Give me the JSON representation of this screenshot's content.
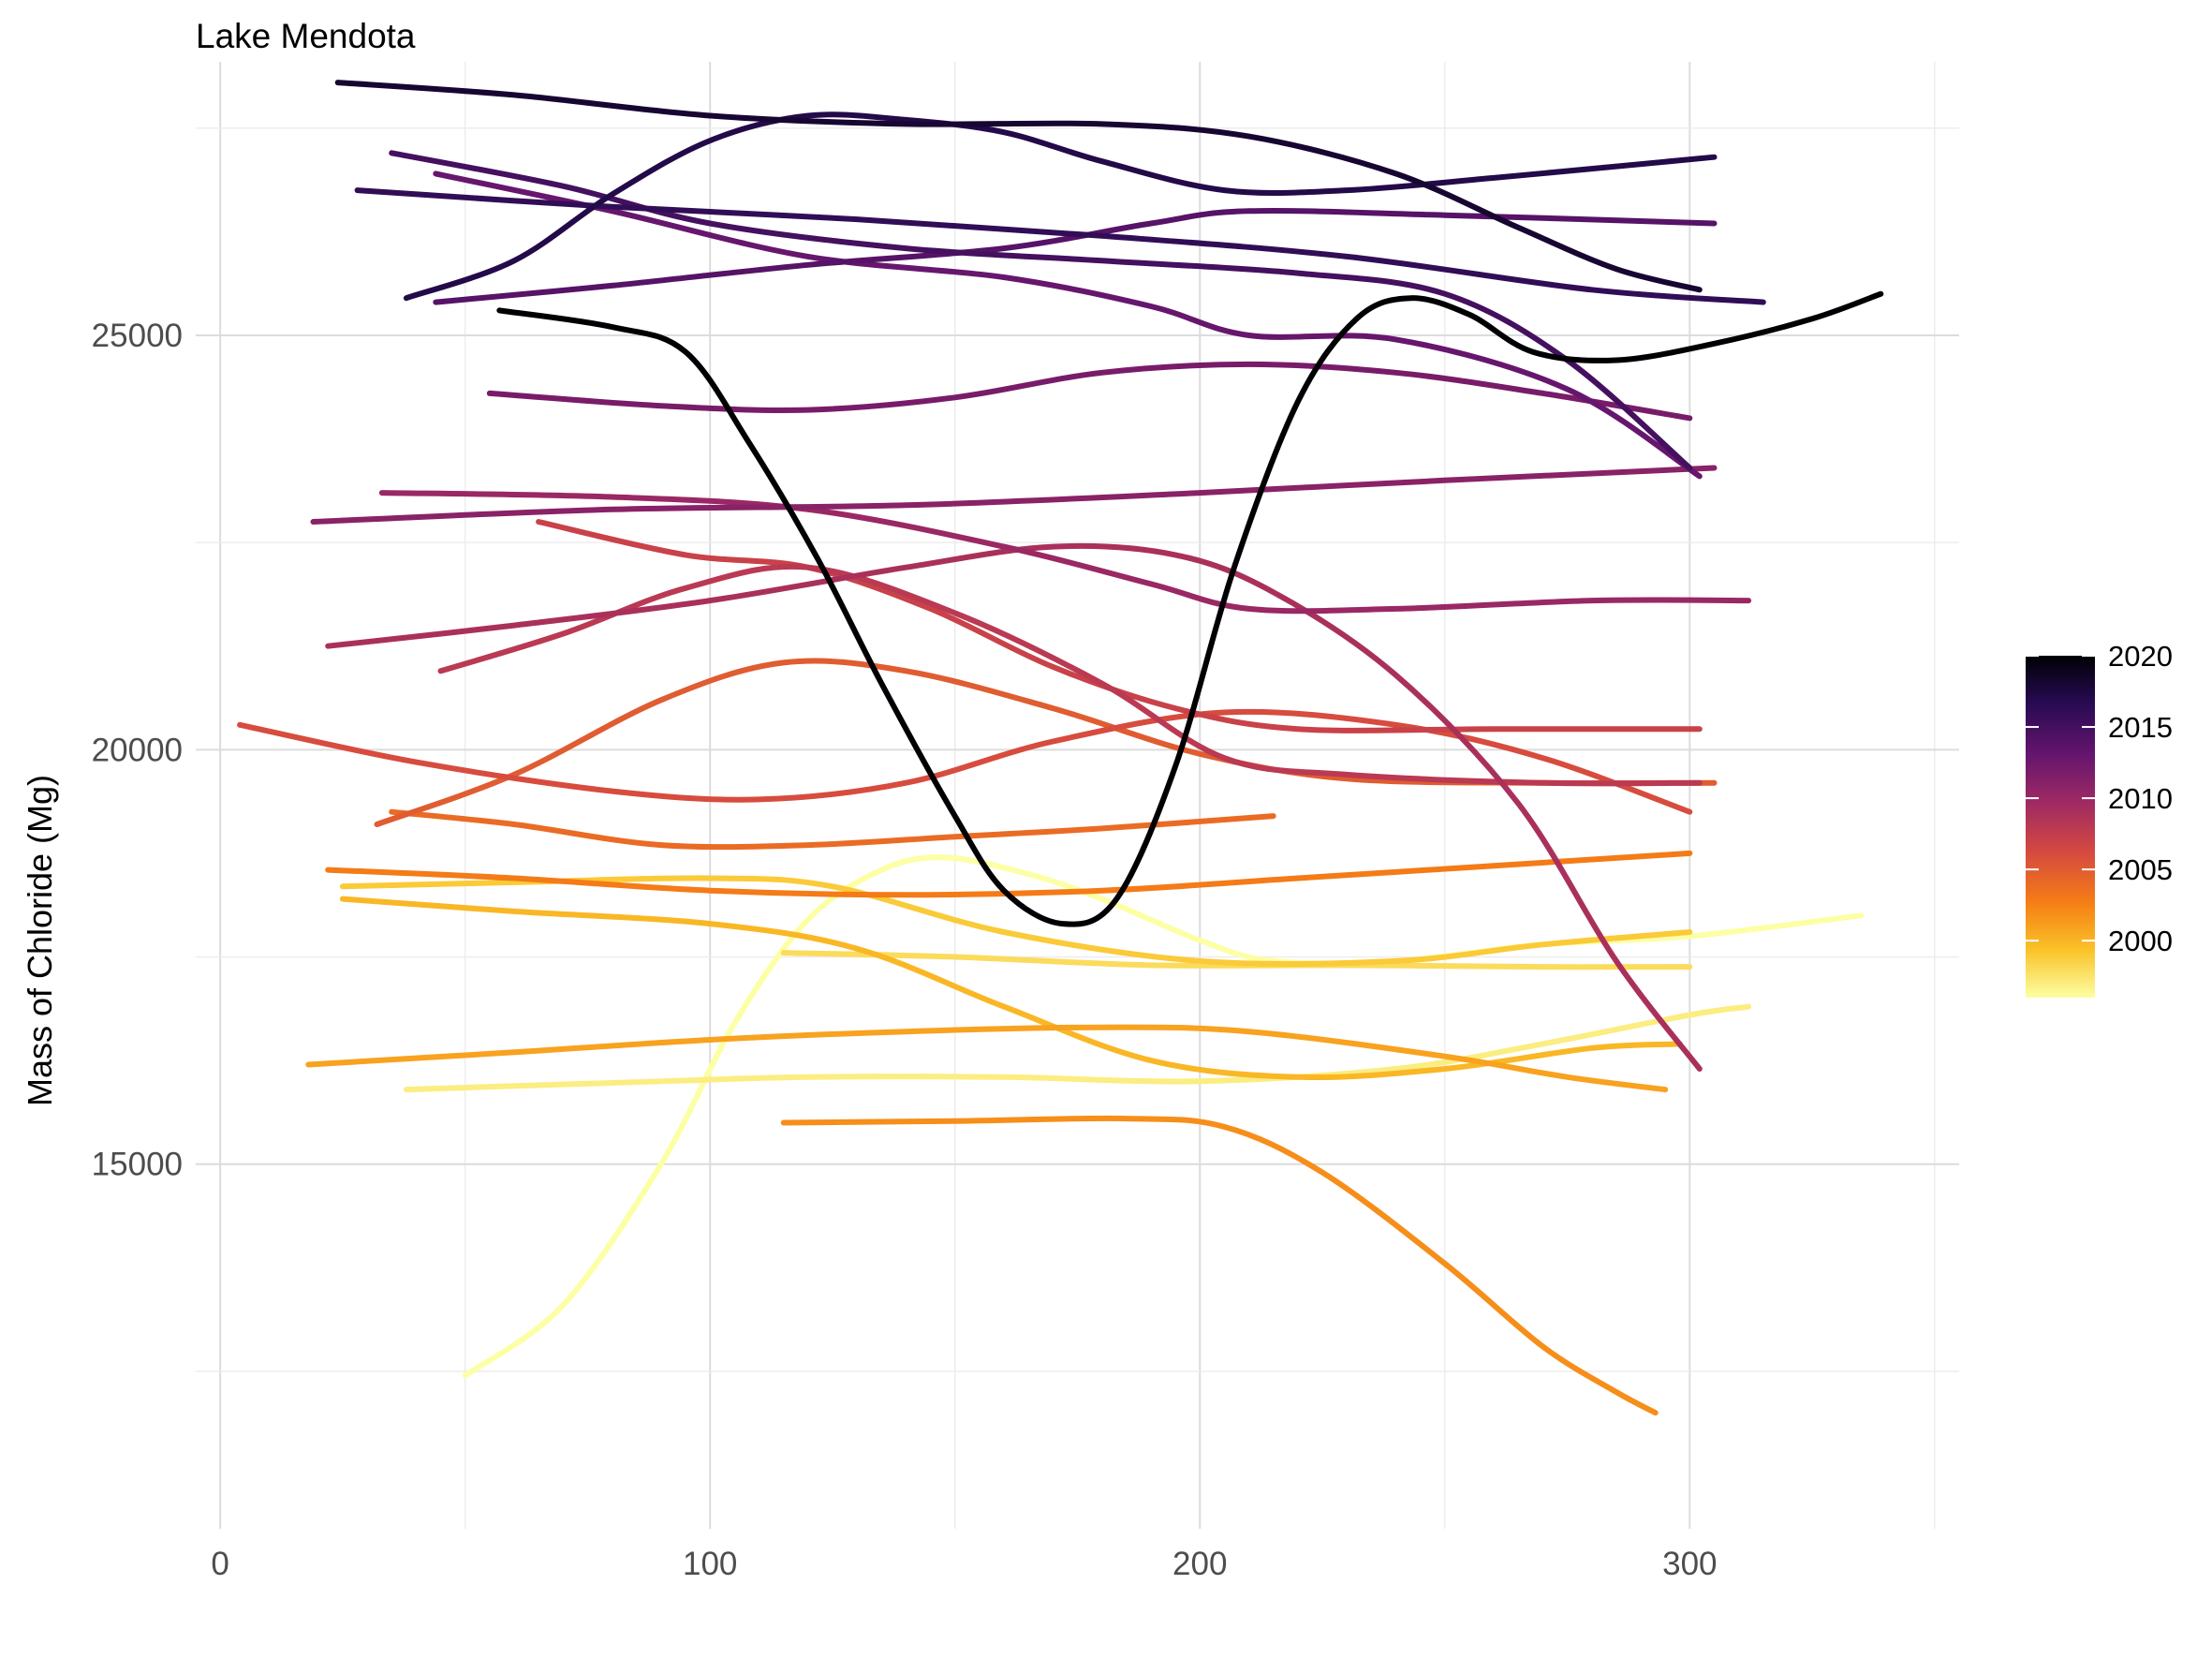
{
  "chart_data": {
    "type": "line",
    "title": "Lake Mendota",
    "xlabel": "",
    "ylabel": "Mass of Chloride (Mg)",
    "xlim": [
      -5,
      355
    ],
    "ylim": [
      10600,
      28300
    ],
    "x_ticks": [
      0,
      100,
      200,
      300
    ],
    "y_ticks": [
      15000,
      20000,
      25000
    ],
    "grid": true,
    "legend": {
      "position": "right",
      "type": "colorbar",
      "range": [
        1996,
        2020
      ],
      "ticks": [
        2000,
        2005,
        2010,
        2015,
        2020
      ]
    },
    "series": [
      {
        "year": 1996,
        "points": [
          [
            50,
            12450
          ],
          [
            70,
            13300
          ],
          [
            90,
            15000
          ],
          [
            105,
            16700
          ],
          [
            120,
            17950
          ],
          [
            135,
            18550
          ],
          [
            148,
            18700
          ],
          [
            165,
            18500
          ],
          [
            180,
            18200
          ],
          [
            200,
            17700
          ],
          [
            215,
            17450
          ],
          [
            240,
            17450
          ],
          [
            270,
            17650
          ],
          [
            300,
            17750
          ],
          [
            335,
            18000
          ]
        ]
      },
      {
        "year": 1997,
        "points": [
          [
            38,
            15900
          ],
          [
            80,
            15980
          ],
          [
            120,
            16050
          ],
          [
            160,
            16050
          ],
          [
            200,
            16000
          ],
          [
            240,
            16150
          ],
          [
            270,
            16450
          ],
          [
            300,
            16800
          ],
          [
            312,
            16900
          ]
        ]
      },
      {
        "year": 1998,
        "points": [
          [
            115,
            17550
          ],
          [
            150,
            17500
          ],
          [
            190,
            17400
          ],
          [
            230,
            17400
          ],
          [
            270,
            17380
          ],
          [
            300,
            17380
          ]
        ]
      },
      {
        "year": 1999,
        "points": [
          [
            25,
            18350
          ],
          [
            60,
            18400
          ],
          [
            100,
            18450
          ],
          [
            125,
            18350
          ],
          [
            160,
            17800
          ],
          [
            200,
            17450
          ],
          [
            240,
            17450
          ],
          [
            270,
            17650
          ],
          [
            300,
            17800
          ]
        ]
      },
      {
        "year": 2000,
        "points": [
          [
            25,
            18200
          ],
          [
            60,
            18050
          ],
          [
            100,
            17900
          ],
          [
            130,
            17600
          ],
          [
            160,
            16900
          ],
          [
            190,
            16250
          ],
          [
            220,
            16050
          ],
          [
            250,
            16150
          ],
          [
            280,
            16400
          ],
          [
            298,
            16450
          ]
        ]
      },
      {
        "year": 2001,
        "points": [
          [
            18,
            16200
          ],
          [
            60,
            16350
          ],
          [
            100,
            16500
          ],
          [
            140,
            16600
          ],
          [
            180,
            16650
          ],
          [
            210,
            16600
          ],
          [
            250,
            16300
          ],
          [
            275,
            16050
          ],
          [
            295,
            15900
          ]
        ]
      },
      {
        "year": 2002,
        "points": [
          [
            115,
            15500
          ],
          [
            150,
            15520
          ],
          [
            185,
            15550
          ],
          [
            205,
            15450
          ],
          [
            225,
            14900
          ],
          [
            250,
            13800
          ],
          [
            270,
            12800
          ],
          [
            285,
            12250
          ],
          [
            293,
            12000
          ]
        ]
      },
      {
        "year": 2003,
        "points": [
          [
            22,
            18550
          ],
          [
            60,
            18450
          ],
          [
            100,
            18300
          ],
          [
            140,
            18250
          ],
          [
            180,
            18300
          ],
          [
            220,
            18450
          ],
          [
            260,
            18600
          ],
          [
            300,
            18750
          ]
        ]
      },
      {
        "year": 2004,
        "points": [
          [
            35,
            19250
          ],
          [
            60,
            19100
          ],
          [
            90,
            18850
          ],
          [
            120,
            18850
          ],
          [
            150,
            18950
          ],
          [
            180,
            19050
          ],
          [
            215,
            19200
          ]
        ]
      },
      {
        "year": 2005,
        "points": [
          [
            32,
            19100
          ],
          [
            60,
            19700
          ],
          [
            90,
            20600
          ],
          [
            115,
            21050
          ],
          [
            140,
            20950
          ],
          [
            170,
            20500
          ],
          [
            200,
            19950
          ],
          [
            230,
            19650
          ],
          [
            270,
            19600
          ],
          [
            305,
            19600
          ]
        ]
      },
      {
        "year": 2006,
        "points": [
          [
            4,
            20300
          ],
          [
            40,
            19850
          ],
          [
            80,
            19500
          ],
          [
            110,
            19400
          ],
          [
            140,
            19600
          ],
          [
            170,
            20100
          ],
          [
            205,
            20450
          ],
          [
            240,
            20300
          ],
          [
            270,
            19900
          ],
          [
            300,
            19250
          ]
        ]
      },
      {
        "year": 2007,
        "points": [
          [
            65,
            22750
          ],
          [
            95,
            22350
          ],
          [
            120,
            22200
          ],
          [
            145,
            21700
          ],
          [
            170,
            21000
          ],
          [
            195,
            20500
          ],
          [
            220,
            20250
          ],
          [
            260,
            20250
          ],
          [
            302,
            20250
          ]
        ]
      },
      {
        "year": 2008,
        "points": [
          [
            45,
            20950
          ],
          [
            70,
            21400
          ],
          [
            95,
            21950
          ],
          [
            120,
            22200
          ],
          [
            150,
            21650
          ],
          [
            180,
            20800
          ],
          [
            205,
            19900
          ],
          [
            230,
            19700
          ],
          [
            270,
            19600
          ],
          [
            302,
            19600
          ]
        ]
      },
      {
        "year": 2009,
        "points": [
          [
            22,
            21250
          ],
          [
            60,
            21500
          ],
          [
            100,
            21800
          ],
          [
            140,
            22200
          ],
          [
            170,
            22450
          ],
          [
            195,
            22350
          ],
          [
            215,
            21900
          ],
          [
            240,
            20900
          ],
          [
            265,
            19350
          ],
          [
            285,
            17450
          ],
          [
            302,
            16150
          ]
        ]
      },
      {
        "year": 2010,
        "points": [
          [
            33,
            23100
          ],
          [
            80,
            23050
          ],
          [
            120,
            22900
          ],
          [
            160,
            22450
          ],
          [
            190,
            22000
          ],
          [
            210,
            21700
          ],
          [
            240,
            21700
          ],
          [
            280,
            21800
          ],
          [
            312,
            21800
          ]
        ]
      },
      {
        "year": 2011,
        "points": [
          [
            19,
            22750
          ],
          [
            80,
            22900
          ],
          [
            140,
            22950
          ],
          [
            200,
            23100
          ],
          [
            250,
            23250
          ],
          [
            305,
            23400
          ]
        ]
      },
      {
        "year": 2012,
        "points": [
          [
            55,
            24300
          ],
          [
            90,
            24150
          ],
          [
            120,
            24100
          ],
          [
            150,
            24250
          ],
          [
            180,
            24550
          ],
          [
            210,
            24650
          ],
          [
            240,
            24550
          ],
          [
            270,
            24300
          ],
          [
            300,
            24000
          ]
        ]
      },
      {
        "year": 2013,
        "points": [
          [
            44,
            26950
          ],
          [
            80,
            26500
          ],
          [
            120,
            25950
          ],
          [
            160,
            25700
          ],
          [
            190,
            25350
          ],
          [
            210,
            25000
          ],
          [
            240,
            24950
          ],
          [
            275,
            24350
          ],
          [
            302,
            23300
          ]
        ]
      },
      {
        "year": 2014,
        "points": [
          [
            44,
            25400
          ],
          [
            80,
            25600
          ],
          [
            120,
            25850
          ],
          [
            160,
            26050
          ],
          [
            190,
            26350
          ],
          [
            210,
            26500
          ],
          [
            250,
            26450
          ],
          [
            305,
            26350
          ]
        ]
      },
      {
        "year": 2015,
        "points": [
          [
            35,
            27200
          ],
          [
            70,
            26800
          ],
          [
            100,
            26350
          ],
          [
            140,
            26050
          ],
          [
            180,
            25900
          ],
          [
            220,
            25750
          ],
          [
            250,
            25500
          ],
          [
            275,
            24700
          ],
          [
            300,
            23400
          ]
        ]
      },
      {
        "year": 2016,
        "points": [
          [
            28,
            26750
          ],
          [
            80,
            26550
          ],
          [
            130,
            26400
          ],
          [
            180,
            26200
          ],
          [
            230,
            25950
          ],
          [
            280,
            25550
          ],
          [
            315,
            25400
          ]
        ]
      },
      {
        "year": 2017,
        "points": [
          [
            38,
            25450
          ],
          [
            60,
            25900
          ],
          [
            80,
            26700
          ],
          [
            100,
            27350
          ],
          [
            120,
            27650
          ],
          [
            140,
            27600
          ],
          [
            160,
            27450
          ],
          [
            180,
            27100
          ],
          [
            205,
            26750
          ],
          [
            230,
            26750
          ],
          [
            260,
            26900
          ],
          [
            305,
            27150
          ]
        ]
      },
      {
        "year": 2018,
        "points": [
          [
            24,
            28050
          ],
          [
            60,
            27900
          ],
          [
            100,
            27650
          ],
          [
            140,
            27550
          ],
          [
            180,
            27550
          ],
          [
            210,
            27400
          ],
          [
            240,
            26950
          ],
          [
            265,
            26300
          ],
          [
            285,
            25800
          ],
          [
            302,
            25550
          ]
        ]
      },
      {
        "year": 2020,
        "points": [
          [
            57,
            25300
          ],
          [
            80,
            25100
          ],
          [
            95,
            24800
          ],
          [
            108,
            23700
          ],
          [
            122,
            22300
          ],
          [
            135,
            20800
          ],
          [
            150,
            19200
          ],
          [
            160,
            18300
          ],
          [
            172,
            17900
          ],
          [
            183,
            18200
          ],
          [
            195,
            19800
          ],
          [
            207,
            22200
          ],
          [
            220,
            24200
          ],
          [
            232,
            25200
          ],
          [
            243,
            25450
          ],
          [
            255,
            25250
          ],
          [
            268,
            24800
          ],
          [
            285,
            24700
          ],
          [
            305,
            24900
          ],
          [
            325,
            25200
          ],
          [
            339,
            25500
          ]
        ]
      }
    ]
  },
  "colors": {
    "scale": [
      "#fcffa4",
      "#fac228",
      "#f57d15",
      "#d44842",
      "#9f2a63",
      "#65156e",
      "#280b53",
      "#000004"
    ],
    "grid": "#dcdcdc",
    "tick_text": "#4d4d4d"
  }
}
